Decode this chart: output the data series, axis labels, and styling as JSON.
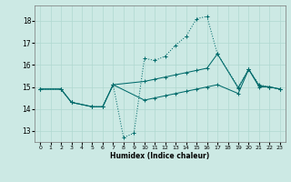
{
  "xlabel": "Humidex (Indice chaleur)",
  "background_color": "#cce9e4",
  "grid_color": "#b0d8d0",
  "line_color": "#006b6b",
  "xlim": [
    -0.5,
    23.5
  ],
  "ylim": [
    12.5,
    18.7
  ],
  "yticks": [
    13,
    14,
    15,
    16,
    17,
    18
  ],
  "xticks": [
    0,
    1,
    2,
    3,
    4,
    5,
    6,
    7,
    8,
    9,
    10,
    11,
    12,
    13,
    14,
    15,
    16,
    17,
    18,
    19,
    20,
    21,
    22,
    23
  ],
  "series": [
    {
      "x": [
        0,
        2,
        3,
        5,
        6,
        7,
        8,
        9,
        10,
        11,
        12,
        13,
        14,
        15,
        16,
        17,
        19,
        20,
        21,
        22,
        23
      ],
      "y": [
        14.9,
        14.9,
        14.3,
        14.1,
        14.1,
        15.1,
        12.7,
        12.9,
        16.3,
        16.2,
        16.4,
        16.9,
        17.3,
        18.1,
        18.2,
        16.5,
        15.0,
        15.8,
        15.1,
        15.0,
        14.9
      ],
      "style": "dotted"
    },
    {
      "x": [
        0,
        2,
        3,
        5,
        6,
        7,
        10,
        11,
        12,
        13,
        14,
        15,
        16,
        17,
        19,
        20,
        21,
        22,
        23
      ],
      "y": [
        14.9,
        14.9,
        14.3,
        14.1,
        14.1,
        15.1,
        15.25,
        15.35,
        15.45,
        15.55,
        15.65,
        15.75,
        15.85,
        16.5,
        14.95,
        15.8,
        15.05,
        15.0,
        14.9
      ],
      "style": "solid"
    },
    {
      "x": [
        0,
        2,
        3,
        5,
        6,
        7,
        10,
        11,
        12,
        13,
        14,
        15,
        16,
        17,
        19,
        20,
        21,
        22,
        23
      ],
      "y": [
        14.9,
        14.9,
        14.3,
        14.1,
        14.1,
        15.1,
        14.4,
        14.5,
        14.6,
        14.7,
        14.8,
        14.9,
        15.0,
        15.1,
        14.7,
        15.8,
        15.0,
        15.0,
        14.9
      ],
      "style": "solid"
    }
  ]
}
